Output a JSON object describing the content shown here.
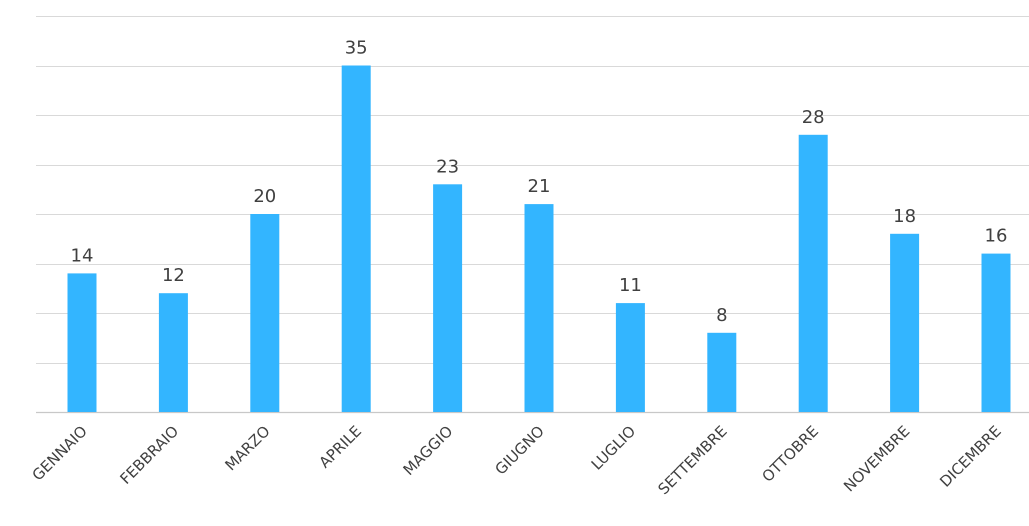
{
  "chart_data": {
    "type": "bar",
    "categories": [
      "GENNAIO",
      "FEBBRAIO",
      "MARZO",
      "APRILE",
      "MAGGIO",
      "GIUGNO",
      "LUGLIO",
      "SETTEMBRE",
      "OTTOBRE",
      "NOVEMBRE",
      "DICEMBRE"
    ],
    "values": [
      14,
      12,
      20,
      35,
      23,
      21,
      11,
      8,
      28,
      18,
      16
    ],
    "title": "",
    "xlabel": "",
    "ylabel": "",
    "ylim": [
      0,
      40
    ],
    "grid": true,
    "grid_step": 5,
    "legend": "none",
    "data_labels": true,
    "bar_color": "#33b5ff"
  }
}
